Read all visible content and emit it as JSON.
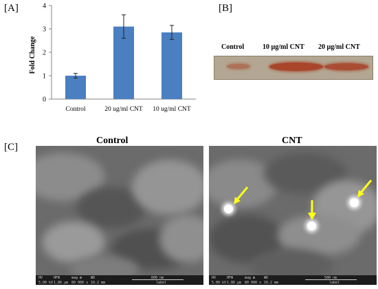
{
  "panels": {
    "a": "[A]",
    "b": "[B]",
    "c": "[C]"
  },
  "chart_data": {
    "type": "bar",
    "categories": [
      "Control",
      "20 ug/ml CNT",
      "10 ug/ml CNT"
    ],
    "values": [
      1.0,
      3.1,
      2.85
    ],
    "errors": [
      0.1,
      0.5,
      0.3
    ],
    "ylabel": "Fold Change",
    "xlabel": "",
    "ylim": [
      0,
      4
    ],
    "yticks": [
      0,
      1,
      2,
      3,
      4
    ],
    "grid": false,
    "bar_color": "#4a7fc1"
  },
  "blot": {
    "labels": [
      "Control",
      "10 µg/ml CNT",
      "20 µg/ml CNT"
    ],
    "band_color": "#a8452a"
  },
  "sem": {
    "left_title": "Control",
    "right_title": "CNT",
    "arrow_color": "#ffff1a",
    "left_bar": {
      "headers": [
        "HV",
        "HFW",
        "mag ⊞",
        "WD",
        "600 nm",
        "label"
      ],
      "values": [
        "5.00 kV",
        "1.86 µm",
        "80 000 x",
        "10.2 mm"
      ]
    },
    "right_bar": {
      "headers": [
        "HV",
        "HFW",
        "mag ⊞",
        "WD",
        "500 nm",
        "label"
      ],
      "values": [
        "5.00 kV",
        "1.86 µm",
        "80 000 x",
        "10.2 mm"
      ]
    }
  }
}
